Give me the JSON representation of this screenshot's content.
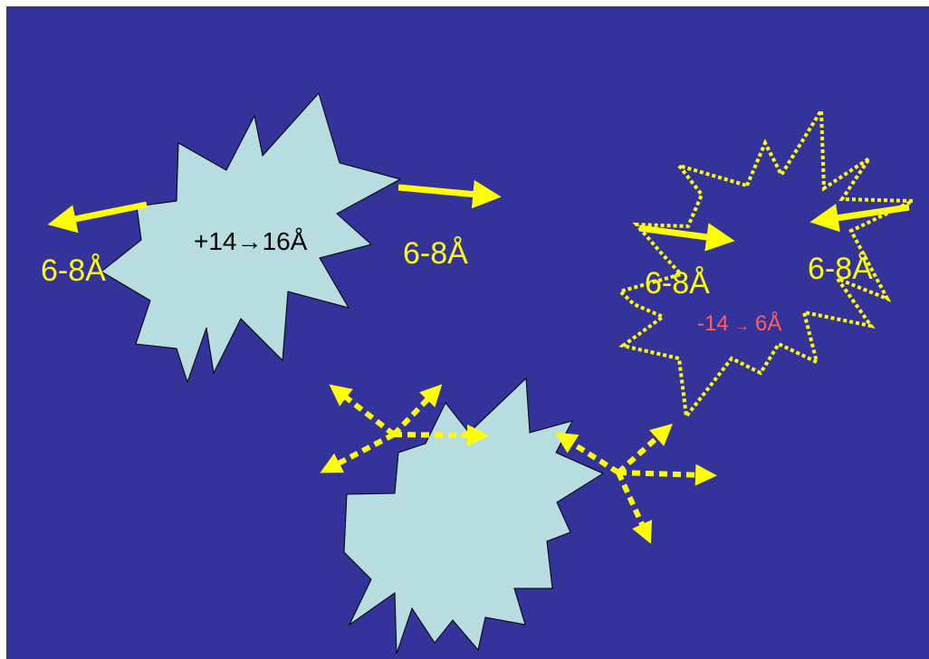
{
  "colors": {
    "background": "#333399",
    "star_fill": "#b7dde0",
    "arrow": "#ffff00",
    "label_yellow": "#ffff00",
    "label_red": "#ff5f5f"
  },
  "labels": {
    "left_star_center": "+14→16Å",
    "left_star_left": "6-8Å",
    "left_star_right": "6-8Å",
    "right_star_left": "6-8Å",
    "right_star_right": "6-8Å",
    "right_star_center_value": "-14",
    "right_star_center_arrow": "→",
    "right_star_center_result": "6Å"
  }
}
